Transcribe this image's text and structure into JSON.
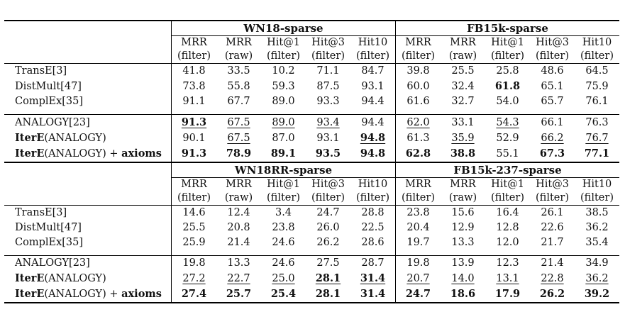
{
  "blocks": [
    {
      "groups": [
        "WN18-sparse",
        "FB15k-sparse"
      ],
      "sub": [
        [
          "MRR",
          "(filter)"
        ],
        [
          "MRR",
          "(raw)"
        ],
        [
          "Hit@1",
          "(filter)"
        ],
        [
          "Hit@3",
          "(filter)"
        ],
        [
          "Hit10",
          "(filter)"
        ]
      ],
      "rows": [
        {
          "name": [
            "TransE[3]"
          ],
          "cells": [
            {
              "v": "41.8"
            },
            {
              "v": "33.5"
            },
            {
              "v": "10.2"
            },
            {
              "v": "71.1"
            },
            {
              "v": "84.7"
            },
            {
              "v": "39.8"
            },
            {
              "v": "25.5"
            },
            {
              "v": "25.8"
            },
            {
              "v": "48.6"
            },
            {
              "v": "64.5"
            }
          ]
        },
        {
          "name": [
            "DistMult[47]"
          ],
          "cells": [
            {
              "v": "73.8"
            },
            {
              "v": "55.8"
            },
            {
              "v": "59.3"
            },
            {
              "v": "87.5"
            },
            {
              "v": "93.1"
            },
            {
              "v": "60.0"
            },
            {
              "v": "32.4"
            },
            {
              "v": "61.8",
              "b": true
            },
            {
              "v": "65.1"
            },
            {
              "v": "75.9"
            }
          ]
        },
        {
          "name": [
            "ComplEx[35]"
          ],
          "cells": [
            {
              "v": "91.1"
            },
            {
              "v": "67.7"
            },
            {
              "v": "89.0"
            },
            {
              "v": "93.3"
            },
            {
              "v": "94.4"
            },
            {
              "v": "61.6"
            },
            {
              "v": "32.7"
            },
            {
              "v": "54.0"
            },
            {
              "v": "65.7"
            },
            {
              "v": "76.1"
            }
          ],
          "gapAfter": true
        },
        {
          "name": [
            "ANALOGY[23]"
          ],
          "cells": [
            {
              "v": "91.3",
              "b": true,
              "u": true
            },
            {
              "v": "67.5",
              "u": true
            },
            {
              "v": "89.0",
              "u": true
            },
            {
              "v": "93.4",
              "u": true
            },
            {
              "v": "94.4"
            },
            {
              "v": "62.0",
              "u": true
            },
            {
              "v": "33.1"
            },
            {
              "v": "54.3",
              "u": true
            },
            {
              "v": "66.1"
            },
            {
              "v": "76.3"
            }
          ]
        },
        {
          "name": [
            "IterE",
            "(ANALOGY)",
            ""
          ],
          "cells": [
            {
              "v": "90.1"
            },
            {
              "v": "67.5",
              "u": true
            },
            {
              "v": "87.0"
            },
            {
              "v": "93.1"
            },
            {
              "v": "94.8",
              "b": true,
              "u": true
            },
            {
              "v": "61.3"
            },
            {
              "v": "35.9",
              "u": true
            },
            {
              "v": "52.9"
            },
            {
              "v": "66.2",
              "u": true
            },
            {
              "v": "76.7",
              "u": true
            }
          ]
        },
        {
          "name": [
            "IterE",
            "(ANALOGY) + ",
            "axioms"
          ],
          "cells": [
            {
              "v": "91.3",
              "b": true
            },
            {
              "v": "78.9",
              "b": true
            },
            {
              "v": "89.1",
              "b": true
            },
            {
              "v": "93.5",
              "b": true
            },
            {
              "v": "94.8",
              "b": true
            },
            {
              "v": "62.8",
              "b": true
            },
            {
              "v": "38.8",
              "b": true
            },
            {
              "v": "55.1"
            },
            {
              "v": "67.3",
              "b": true
            },
            {
              "v": "77.1",
              "b": true
            }
          ]
        }
      ]
    },
    {
      "groups": [
        "WN18RR-sparse",
        "FB15k-237-sparse"
      ],
      "sub": [
        [
          "MRR",
          "(filter)"
        ],
        [
          "MRR",
          "(raw)"
        ],
        [
          "Hit@1",
          "(filter)"
        ],
        [
          "Hit@3",
          "(filter)"
        ],
        [
          "Hit10",
          "(filter)"
        ]
      ],
      "rows": [
        {
          "name": [
            "TransE[3]"
          ],
          "cells": [
            {
              "v": "14.6"
            },
            {
              "v": "12.4"
            },
            {
              "v": "3.4"
            },
            {
              "v": "24.7"
            },
            {
              "v": "28.8"
            },
            {
              "v": "23.8"
            },
            {
              "v": "15.6"
            },
            {
              "v": "16.4"
            },
            {
              "v": "26.1"
            },
            {
              "v": "38.5"
            }
          ]
        },
        {
          "name": [
            "DistMult[47]"
          ],
          "cells": [
            {
              "v": "25.5"
            },
            {
              "v": "20.8"
            },
            {
              "v": "23.8"
            },
            {
              "v": "26.0"
            },
            {
              "v": "22.5"
            },
            {
              "v": "20.4"
            },
            {
              "v": "12.9"
            },
            {
              "v": "12.8"
            },
            {
              "v": "22.6"
            },
            {
              "v": "36.2"
            }
          ]
        },
        {
          "name": [
            "ComplEx[35]"
          ],
          "cells": [
            {
              "v": "25.9"
            },
            {
              "v": "21.4"
            },
            {
              "v": "24.6"
            },
            {
              "v": "26.2"
            },
            {
              "v": "28.6"
            },
            {
              "v": "19.7"
            },
            {
              "v": "13.3"
            },
            {
              "v": "12.0"
            },
            {
              "v": "21.7"
            },
            {
              "v": "35.4"
            }
          ],
          "gapAfter": true
        },
        {
          "name": [
            "ANALOGY[23]"
          ],
          "cells": [
            {
              "v": "19.8"
            },
            {
              "v": "13.3"
            },
            {
              "v": "24.6"
            },
            {
              "v": "27.5"
            },
            {
              "v": "28.7"
            },
            {
              "v": "19.8"
            },
            {
              "v": "13.9"
            },
            {
              "v": "12.3"
            },
            {
              "v": "21.4"
            },
            {
              "v": "34.9"
            }
          ]
        },
        {
          "name": [
            "IterE",
            "(ANALOGY)",
            ""
          ],
          "cells": [
            {
              "v": "27.2",
              "u": true
            },
            {
              "v": "22.7",
              "u": true
            },
            {
              "v": "25.0",
              "u": true
            },
            {
              "v": "28.1",
              "b": true,
              "u": true
            },
            {
              "v": "31.4",
              "b": true,
              "u": true
            },
            {
              "v": "20.7",
              "u": true
            },
            {
              "v": "14.0",
              "u": true
            },
            {
              "v": "13.1",
              "u": true
            },
            {
              "v": "22.8",
              "u": true
            },
            {
              "v": "36.2",
              "u": true
            }
          ]
        },
        {
          "name": [
            "IterE",
            "(ANALOGY) + ",
            "axioms"
          ],
          "cells": [
            {
              "v": "27.4",
              "b": true
            },
            {
              "v": "25.7",
              "b": true
            },
            {
              "v": "25.4",
              "b": true
            },
            {
              "v": "28.1",
              "b": true
            },
            {
              "v": "31.4",
              "b": true
            },
            {
              "v": "24.7",
              "b": true
            },
            {
              "v": "18.6",
              "b": true
            },
            {
              "v": "17.9",
              "b": true
            },
            {
              "v": "26.2",
              "b": true
            },
            {
              "v": "39.2",
              "b": true
            }
          ]
        }
      ]
    }
  ]
}
